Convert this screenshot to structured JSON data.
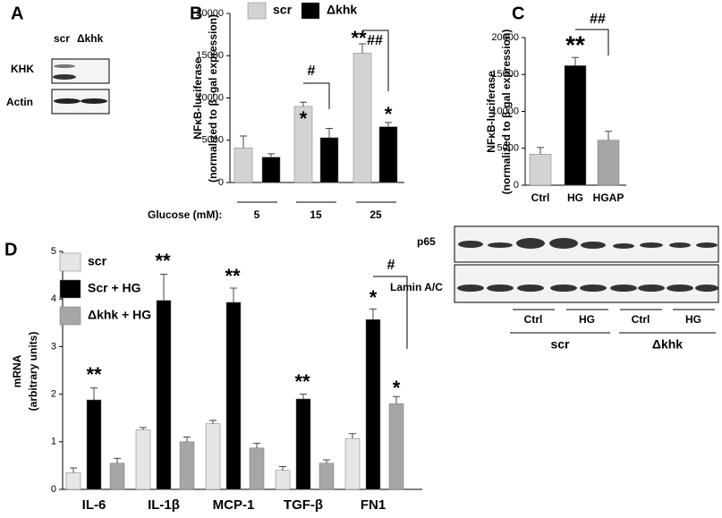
{
  "blot_A": {
    "panel": "A",
    "lanes": [
      "scr",
      "Δkhk"
    ],
    "rows": [
      "KHK",
      "Actin"
    ]
  },
  "blot_E": {
    "panel": "E",
    "rows": [
      "p65",
      "Lamin A/C"
    ],
    "treatments": [
      "Ctrl",
      "HG",
      "Ctrl",
      "HG"
    ],
    "groups": [
      "scr",
      "Δkhk"
    ]
  },
  "chart_data": [
    {
      "type": "bar",
      "panel": "B",
      "ylabel": [
        "NFκB-luciferase",
        "(normalized to β -gal expression)"
      ],
      "xlabel": "Glucose (mM):",
      "categories": [
        "5",
        "15",
        "25"
      ],
      "series": [
        {
          "name": "scr",
          "color": "#d3d3d3",
          "values": [
            4100,
            9000,
            15300
          ],
          "errors": [
            1400,
            500,
            1100
          ]
        },
        {
          "name": "Δkhk",
          "color": "#000000",
          "values": [
            3000,
            5300,
            6600
          ],
          "errors": [
            400,
            1100,
            500
          ]
        }
      ],
      "ylim": [
        0,
        20000
      ],
      "yticks": [
        0,
        5000,
        10000,
        15000,
        20000
      ],
      "annotations": [
        "*",
        "**",
        "*",
        "#",
        "##"
      ]
    },
    {
      "type": "bar",
      "panel": "C",
      "ylabel": [
        "NFκB-luciferase",
        "(normalized to β-gal expression)"
      ],
      "categories": [
        "Ctrl",
        "HG",
        "HGAP"
      ],
      "colors": [
        "#d3d3d3",
        "#000000",
        "#a6a6a6"
      ],
      "values": [
        4200,
        16200,
        6100
      ],
      "errors": [
        900,
        1100,
        1200
      ],
      "ylim": [
        0,
        20000
      ],
      "yticks": [
        0,
        5000,
        10000,
        15000,
        20000
      ],
      "annotations": [
        "**",
        "##"
      ]
    },
    {
      "type": "bar",
      "panel": "D",
      "ylabel": [
        "mRNA",
        "(arbitrary units)"
      ],
      "categories": [
        "IL-6",
        "IL-1β",
        "MCP-1",
        "TGF-β",
        "FN1"
      ],
      "series": [
        {
          "name": "scr",
          "color": "#e6e6e6",
          "values": [
            0.35,
            1.25,
            1.38,
            0.4,
            1.07
          ],
          "errors": [
            0.1,
            0.05,
            0.07,
            0.08,
            0.1
          ]
        },
        {
          "name": "Scr + HG",
          "color": "#000000",
          "values": [
            1.88,
            3.97,
            3.93,
            1.9,
            3.57
          ],
          "errors": [
            0.25,
            0.55,
            0.3,
            0.1,
            0.22
          ]
        },
        {
          "name": "Δkhk + HG",
          "color": "#a6a6a6",
          "values": [
            0.55,
            1.0,
            0.87,
            0.55,
            1.8
          ],
          "errors": [
            0.1,
            0.1,
            0.1,
            0.07,
            0.15
          ]
        }
      ],
      "ylim": [
        0,
        5
      ],
      "yticks": [
        0,
        1,
        2,
        3,
        4,
        5
      ],
      "annotations": [
        "**",
        "**",
        "**",
        "**",
        "*",
        "*",
        "#"
      ]
    }
  ]
}
